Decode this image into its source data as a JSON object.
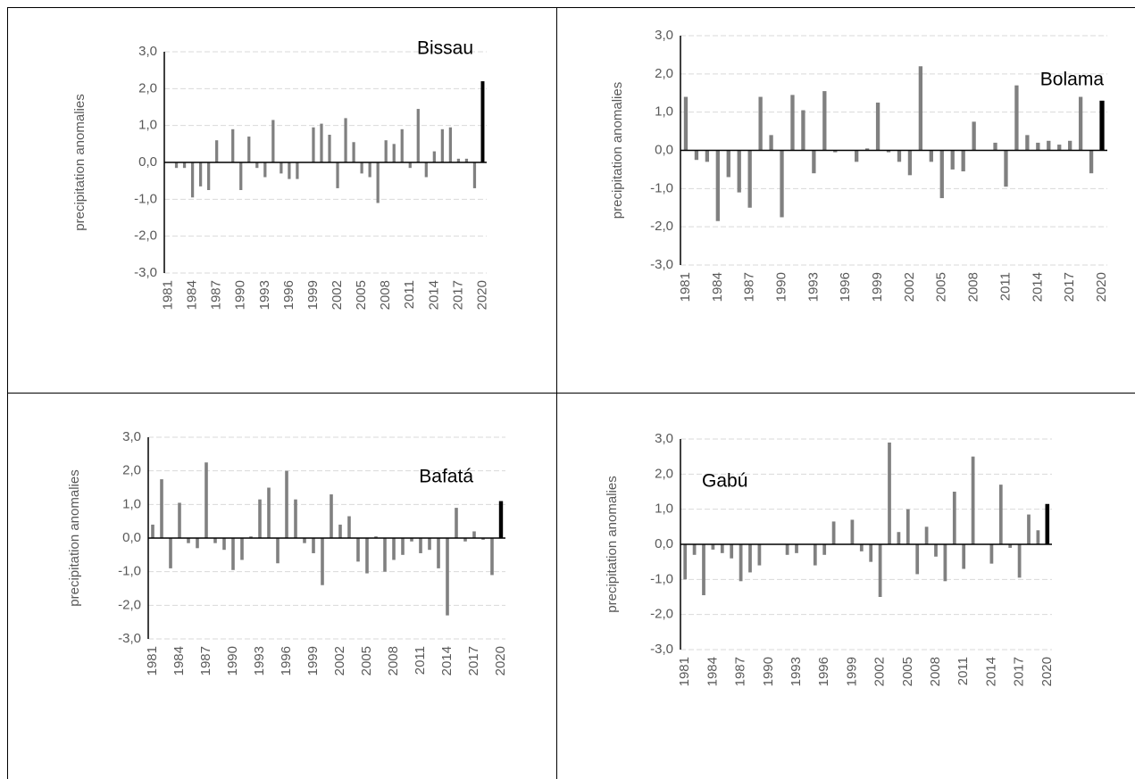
{
  "chart_data": [
    {
      "type": "bar",
      "title": "Bissau",
      "y_label": "precipitation anomalies",
      "categories": [
        "1981",
        null,
        null,
        "1984",
        null,
        null,
        "1987",
        null,
        null,
        "1990",
        null,
        null,
        "1993",
        null,
        null,
        "1996",
        null,
        null,
        "1999",
        null,
        null,
        "2002",
        null,
        null,
        "2005",
        null,
        null,
        "2008",
        null,
        null,
        "2011",
        null,
        null,
        "2014",
        null,
        null,
        "2017",
        null,
        null,
        "2020"
      ],
      "values": [
        0,
        -0.15,
        -0.15,
        -0.95,
        -0.65,
        -0.75,
        0.6,
        0,
        0.9,
        -0.75,
        0.7,
        -0.15,
        -0.4,
        1.15,
        -0.3,
        -0.45,
        -0.45,
        0,
        0.95,
        1.05,
        0.75,
        -0.7,
        1.2,
        0.55,
        -0.3,
        -0.4,
        -1.1,
        0.6,
        0.5,
        0.9,
        -0.15,
        1.45,
        -0.4,
        0.3,
        0.9,
        0.95,
        0.1,
        0.1,
        -0.7,
        2.2
      ],
      "color": "#808080",
      "highlight_color": "#000000",
      "ylim": [
        -3,
        3
      ],
      "yticks": [
        {
          "value": -3,
          "label": "-3,0"
        },
        {
          "value": -2,
          "label": "-2,0"
        },
        {
          "value": -1,
          "label": "-1,0"
        },
        {
          "value": 0,
          "label": "0,0"
        },
        {
          "value": 1,
          "label": "1,0"
        },
        {
          "value": 2,
          "label": "2,0"
        },
        {
          "value": 3,
          "label": "3,0"
        }
      ],
      "grid": true
    },
    {
      "type": "bar",
      "title": "Bolama",
      "y_label": "precipitation anomalies",
      "categories": [
        "1981",
        null,
        null,
        "1984",
        null,
        null,
        "1987",
        null,
        null,
        "1990",
        null,
        null,
        "1993",
        null,
        null,
        "1996",
        null,
        null,
        "1999",
        null,
        null,
        "2002",
        null,
        null,
        "2005",
        null,
        null,
        "2008",
        null,
        null,
        "2011",
        null,
        null,
        "2014",
        null,
        null,
        "2017",
        null,
        null,
        "2020"
      ],
      "values": [
        1.4,
        -0.25,
        -0.3,
        -1.85,
        -0.7,
        -1.1,
        -1.5,
        1.4,
        0.4,
        -1.75,
        1.45,
        1.05,
        -0.6,
        1.55,
        -0.05,
        0,
        -0.3,
        0.05,
        1.25,
        -0.05,
        -0.3,
        -0.65,
        2.2,
        -0.3,
        -1.25,
        -0.5,
        -0.55,
        0.75,
        0,
        0.2,
        -0.95,
        1.7,
        0.4,
        0.2,
        0.25,
        0.15,
        0.25,
        1.4,
        -0.6,
        1.3
      ],
      "color": "#808080",
      "highlight_color": "#000000",
      "ylim": [
        -3,
        3
      ],
      "yticks": [
        {
          "value": -3,
          "label": "-3,0"
        },
        {
          "value": -2,
          "label": "-2,0"
        },
        {
          "value": -1,
          "label": "-1,0"
        },
        {
          "value": 0,
          "label": "0,0"
        },
        {
          "value": 1,
          "label": "1,0"
        },
        {
          "value": 2,
          "label": "2,0"
        },
        {
          "value": 3,
          "label": "3,0"
        }
      ],
      "grid": true
    },
    {
      "type": "bar",
      "title": "Bafatá",
      "y_label": "precipitation anomalies",
      "categories": [
        "1981",
        null,
        null,
        "1984",
        null,
        null,
        "1987",
        null,
        null,
        "1990",
        null,
        null,
        "1993",
        null,
        null,
        "1996",
        null,
        null,
        "1999",
        null,
        null,
        "2002",
        null,
        null,
        "2005",
        null,
        null,
        "2008",
        null,
        null,
        "2011",
        null,
        null,
        "2014",
        null,
        null,
        "2017",
        null,
        null,
        "2020"
      ],
      "values": [
        0.4,
        1.75,
        -0.9,
        1.05,
        -0.15,
        -0.3,
        2.25,
        -0.15,
        -0.35,
        -0.95,
        -0.65,
        0.05,
        1.15,
        1.5,
        -0.75,
        2.0,
        1.15,
        -0.15,
        -0.45,
        -1.4,
        1.3,
        0.4,
        0.65,
        -0.7,
        -1.05,
        0.05,
        -1.0,
        -0.65,
        -0.5,
        -0.1,
        -0.45,
        -0.35,
        -0.9,
        -2.3,
        0.9,
        -0.1,
        0.2,
        -0.05,
        -1.1,
        1.1
      ],
      "color": "#808080",
      "highlight_color": "#000000",
      "ylim": [
        -3,
        3
      ],
      "yticks": [
        {
          "value": -3,
          "label": "-3,0"
        },
        {
          "value": -2,
          "label": "-2,0"
        },
        {
          "value": -1,
          "label": "-1,0"
        },
        {
          "value": 0,
          "label": "0,0"
        },
        {
          "value": 1,
          "label": "1,0"
        },
        {
          "value": 2,
          "label": "2,0"
        },
        {
          "value": 3,
          "label": "3,0"
        }
      ],
      "grid": true
    },
    {
      "type": "bar",
      "title": "Gabú",
      "y_label": "precipitation anomalies",
      "categories": [
        "1981",
        null,
        null,
        "1984",
        null,
        null,
        "1987",
        null,
        null,
        "1990",
        null,
        null,
        "1993",
        null,
        null,
        "1996",
        null,
        null,
        "1999",
        null,
        null,
        "2002",
        null,
        null,
        "2005",
        null,
        null,
        "2008",
        null,
        null,
        "2011",
        null,
        null,
        "2014",
        null,
        null,
        "2017",
        null,
        null,
        "2020"
      ],
      "values": [
        -1.0,
        -0.3,
        -1.45,
        -0.15,
        -0.25,
        -0.4,
        -1.05,
        -0.8,
        -0.6,
        0,
        0,
        -0.3,
        -0.25,
        0,
        -0.6,
        -0.3,
        0.65,
        0,
        0.7,
        -0.2,
        -0.5,
        -1.5,
        2.9,
        0.35,
        1.0,
        -0.85,
        0.5,
        -0.35,
        -1.05,
        1.5,
        -0.7,
        2.5,
        0,
        -0.55,
        1.7,
        -0.1,
        -0.95,
        0.85,
        0.4,
        1.15
      ],
      "color": "#808080",
      "highlight_color": "#000000",
      "ylim": [
        -3,
        3
      ],
      "yticks": [
        {
          "value": -3,
          "label": "-3,0"
        },
        {
          "value": -2,
          "label": "-2,0"
        },
        {
          "value": -1,
          "label": "-1,0"
        },
        {
          "value": 0,
          "label": "0,0"
        },
        {
          "value": 1,
          "label": "1,0"
        },
        {
          "value": 2,
          "label": "2,0"
        },
        {
          "value": 3,
          "label": "3,0"
        }
      ],
      "grid": true
    }
  ]
}
